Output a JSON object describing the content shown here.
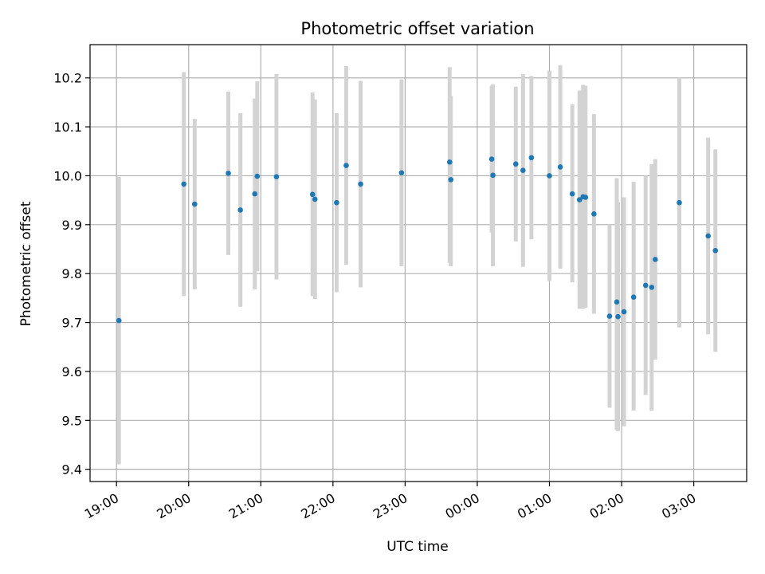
{
  "chart_data": {
    "type": "scatter",
    "title": "Photometric offset variation",
    "xlabel": "UTC time",
    "ylabel": "Photometric offset",
    "grid": true,
    "legend": "none",
    "x_tick_labels": [
      "19:00",
      "20:00",
      "21:00",
      "22:00",
      "23:00",
      "00:00",
      "01:00",
      "02:00",
      "03:00"
    ],
    "y_ticks": [
      9.4,
      9.5,
      9.6,
      9.7,
      9.8,
      9.9,
      10.0,
      10.1,
      10.2
    ],
    "y_tick_labels": [
      "9.4",
      "9.5",
      "9.6",
      "9.7",
      "9.8",
      "9.9",
      "10.0",
      "10.1",
      "10.2"
    ],
    "ylim": [
      9.375,
      10.268
    ],
    "xlim": [
      "18:38",
      "03:44"
    ],
    "colors": {
      "marker": "#1f77b4",
      "errorbar": "#d3d3d3",
      "grid": "#b0b0b0"
    },
    "points": [
      {
        "t": "19:02",
        "y": 9.704,
        "lo": 9.41,
        "hi": 9.998
      },
      {
        "t": "19:56",
        "y": 9.983,
        "lo": 9.754,
        "hi": 10.212
      },
      {
        "t": "20:05",
        "y": 9.942,
        "lo": 9.768,
        "hi": 10.116
      },
      {
        "t": "20:33",
        "y": 10.005,
        "lo": 9.838,
        "hi": 10.172
      },
      {
        "t": "20:43",
        "y": 9.93,
        "lo": 9.732,
        "hi": 10.128
      },
      {
        "t": "20:55",
        "y": 9.963,
        "lo": 9.768,
        "hi": 10.158
      },
      {
        "t": "20:57",
        "y": 9.999,
        "lo": 9.805,
        "hi": 10.193
      },
      {
        "t": "21:13",
        "y": 9.998,
        "lo": 9.788,
        "hi": 10.208
      },
      {
        "t": "21:43",
        "y": 9.962,
        "lo": 9.754,
        "hi": 10.17
      },
      {
        "t": "21:45",
        "y": 9.952,
        "lo": 9.748,
        "hi": 10.156
      },
      {
        "t": "22:03",
        "y": 9.945,
        "lo": 9.762,
        "hi": 10.128
      },
      {
        "t": "22:11",
        "y": 10.021,
        "lo": 9.818,
        "hi": 10.224
      },
      {
        "t": "22:23",
        "y": 9.983,
        "lo": 9.772,
        "hi": 10.194
      },
      {
        "t": "22:57",
        "y": 10.006,
        "lo": 9.815,
        "hi": 10.197
      },
      {
        "t": "23:37",
        "y": 10.028,
        "lo": 9.822,
        "hi": 10.222
      },
      {
        "t": "23:38",
        "y": 9.992,
        "lo": 9.815,
        "hi": 10.163
      },
      {
        "t": "00:12",
        "y": 10.034,
        "lo": 9.884,
        "hi": 10.184
      },
      {
        "t": "00:13",
        "y": 10.001,
        "lo": 9.815,
        "hi": 10.187
      },
      {
        "t": "00:32",
        "y": 10.024,
        "lo": 9.866,
        "hi": 10.182
      },
      {
        "t": "00:38",
        "y": 10.011,
        "lo": 9.814,
        "hi": 10.208
      },
      {
        "t": "00:45",
        "y": 10.037,
        "lo": 9.87,
        "hi": 10.204
      },
      {
        "t": "01:00",
        "y": 10.0,
        "lo": 9.785,
        "hi": 10.215
      },
      {
        "t": "01:09",
        "y": 10.018,
        "lo": 9.81,
        "hi": 10.226
      },
      {
        "t": "01:19",
        "y": 9.963,
        "lo": 9.782,
        "hi": 10.146
      },
      {
        "t": "01:25",
        "y": 9.951,
        "lo": 9.728,
        "hi": 10.174
      },
      {
        "t": "01:28",
        "y": 9.957,
        "lo": 9.728,
        "hi": 10.186
      },
      {
        "t": "01:30",
        "y": 9.956,
        "lo": 9.73,
        "hi": 10.184
      },
      {
        "t": "01:37",
        "y": 9.922,
        "lo": 9.718,
        "hi": 10.126
      },
      {
        "t": "01:50",
        "y": 9.713,
        "lo": 9.526,
        "hi": 9.9
      },
      {
        "t": "01:56",
        "y": 9.742,
        "lo": 9.48,
        "hi": 9.995
      },
      {
        "t": "01:57",
        "y": 9.712,
        "lo": 9.478,
        "hi": 9.946
      },
      {
        "t": "02:02",
        "y": 9.722,
        "lo": 9.488,
        "hi": 9.956
      },
      {
        "t": "02:10",
        "y": 9.752,
        "lo": 9.52,
        "hi": 9.988
      },
      {
        "t": "02:20",
        "y": 9.776,
        "lo": 9.552,
        "hi": 10.0
      },
      {
        "t": "02:25",
        "y": 9.772,
        "lo": 9.52,
        "hi": 10.024
      },
      {
        "t": "02:28",
        "y": 9.829,
        "lo": 9.624,
        "hi": 10.034
      },
      {
        "t": "02:48",
        "y": 9.945,
        "lo": 9.69,
        "hi": 10.2
      },
      {
        "t": "03:12",
        "y": 9.877,
        "lo": 9.676,
        "hi": 10.078
      },
      {
        "t": "03:18",
        "y": 9.847,
        "lo": 9.64,
        "hi": 10.054
      }
    ]
  }
}
